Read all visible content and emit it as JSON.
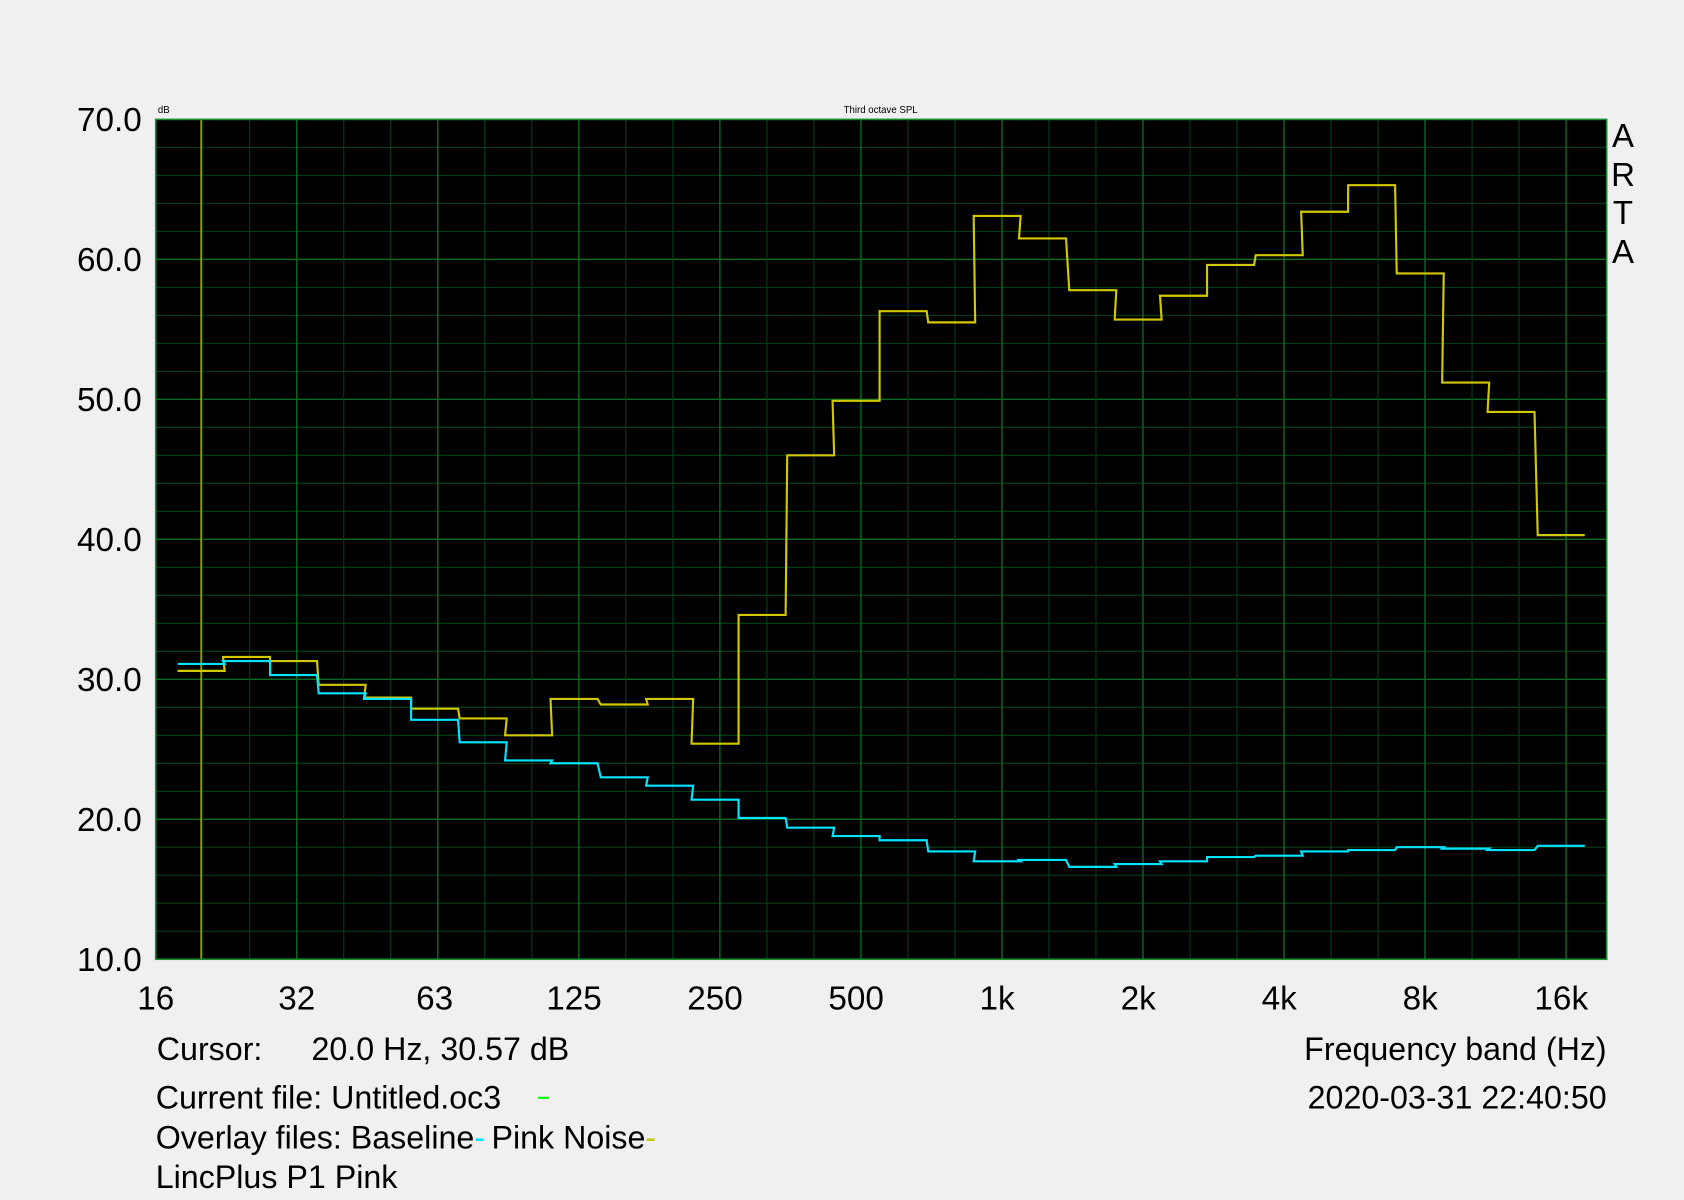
{
  "chart_data": {
    "type": "line",
    "step": true,
    "title": "Third octave SPL",
    "ylabel": "dB",
    "xlabel": "Frequency band (Hz)",
    "x_scale": "log",
    "xlim": [
      16,
      20000
    ],
    "ylim": [
      10,
      70
    ],
    "grid": true,
    "background": "#000000",
    "x_ticks": [
      "16",
      "32",
      "63",
      "125",
      "250",
      "500",
      "1k",
      "2k",
      "4k",
      "8k",
      "16k"
    ],
    "x_tick_values": [
      16,
      32,
      63,
      125,
      250,
      500,
      1000,
      2000,
      4000,
      8000,
      16000
    ],
    "y_ticks": [
      "10.0",
      "20.0",
      "30.0",
      "40.0",
      "50.0",
      "60.0",
      "70.0"
    ],
    "y_tick_values": [
      10,
      20,
      30,
      40,
      50,
      60,
      70
    ],
    "x": [
      20,
      25,
      31.5,
      40,
      50,
      63,
      80,
      100,
      125,
      160,
      200,
      250,
      315,
      400,
      500,
      630,
      800,
      1000,
      1250,
      1600,
      2000,
      2500,
      3150,
      4000,
      5000,
      6300,
      8000,
      10000,
      12500,
      16000
    ],
    "series": [
      {
        "name": "Pink Noise",
        "color": "#d2c800",
        "values": [
          30.6,
          31.6,
          31.3,
          29.6,
          28.7,
          27.9,
          27.2,
          26.0,
          28.6,
          28.2,
          28.6,
          25.4,
          34.6,
          46.0,
          49.9,
          56.3,
          55.5,
          63.1,
          61.5,
          57.8,
          55.7,
          57.4,
          59.6,
          60.3,
          63.4,
          65.3,
          59.0,
          51.2,
          49.1,
          40.3
        ]
      },
      {
        "name": "Baseline",
        "color": "#00e5ff",
        "values": [
          31.1,
          31.3,
          30.3,
          29.0,
          28.6,
          27.1,
          25.5,
          24.2,
          24.0,
          23.0,
          22.4,
          21.4,
          20.1,
          19.4,
          18.8,
          18.5,
          17.7,
          17.0,
          17.1,
          16.6,
          16.8,
          17.0,
          17.3,
          17.4,
          17.7,
          17.8,
          18.0,
          17.9,
          17.8,
          18.1
        ]
      }
    ],
    "cursor": {
      "frequency": 20.0,
      "color": "#c8b400"
    }
  },
  "brand": "ARTA",
  "info": {
    "cursor_label": "Cursor:",
    "cursor_value": "20.0 Hz, 30.57 dB",
    "current_file": "Current file: Untitled.oc3",
    "current_file_color": "#00ff00",
    "overlay_prefix": "Overlay files: Baseline",
    "overlay_baseline_color": "#00e5ff",
    "overlay_second": "Pink Noise",
    "overlay_second_color": "#c8c800",
    "note": "LincPlus P1 Pink",
    "datetime": "2020-03-31  22:40:50"
  },
  "colors": {
    "grid_major": "#0b6a22",
    "grid_minor": "#06401a",
    "frame": "#1a8a30"
  }
}
